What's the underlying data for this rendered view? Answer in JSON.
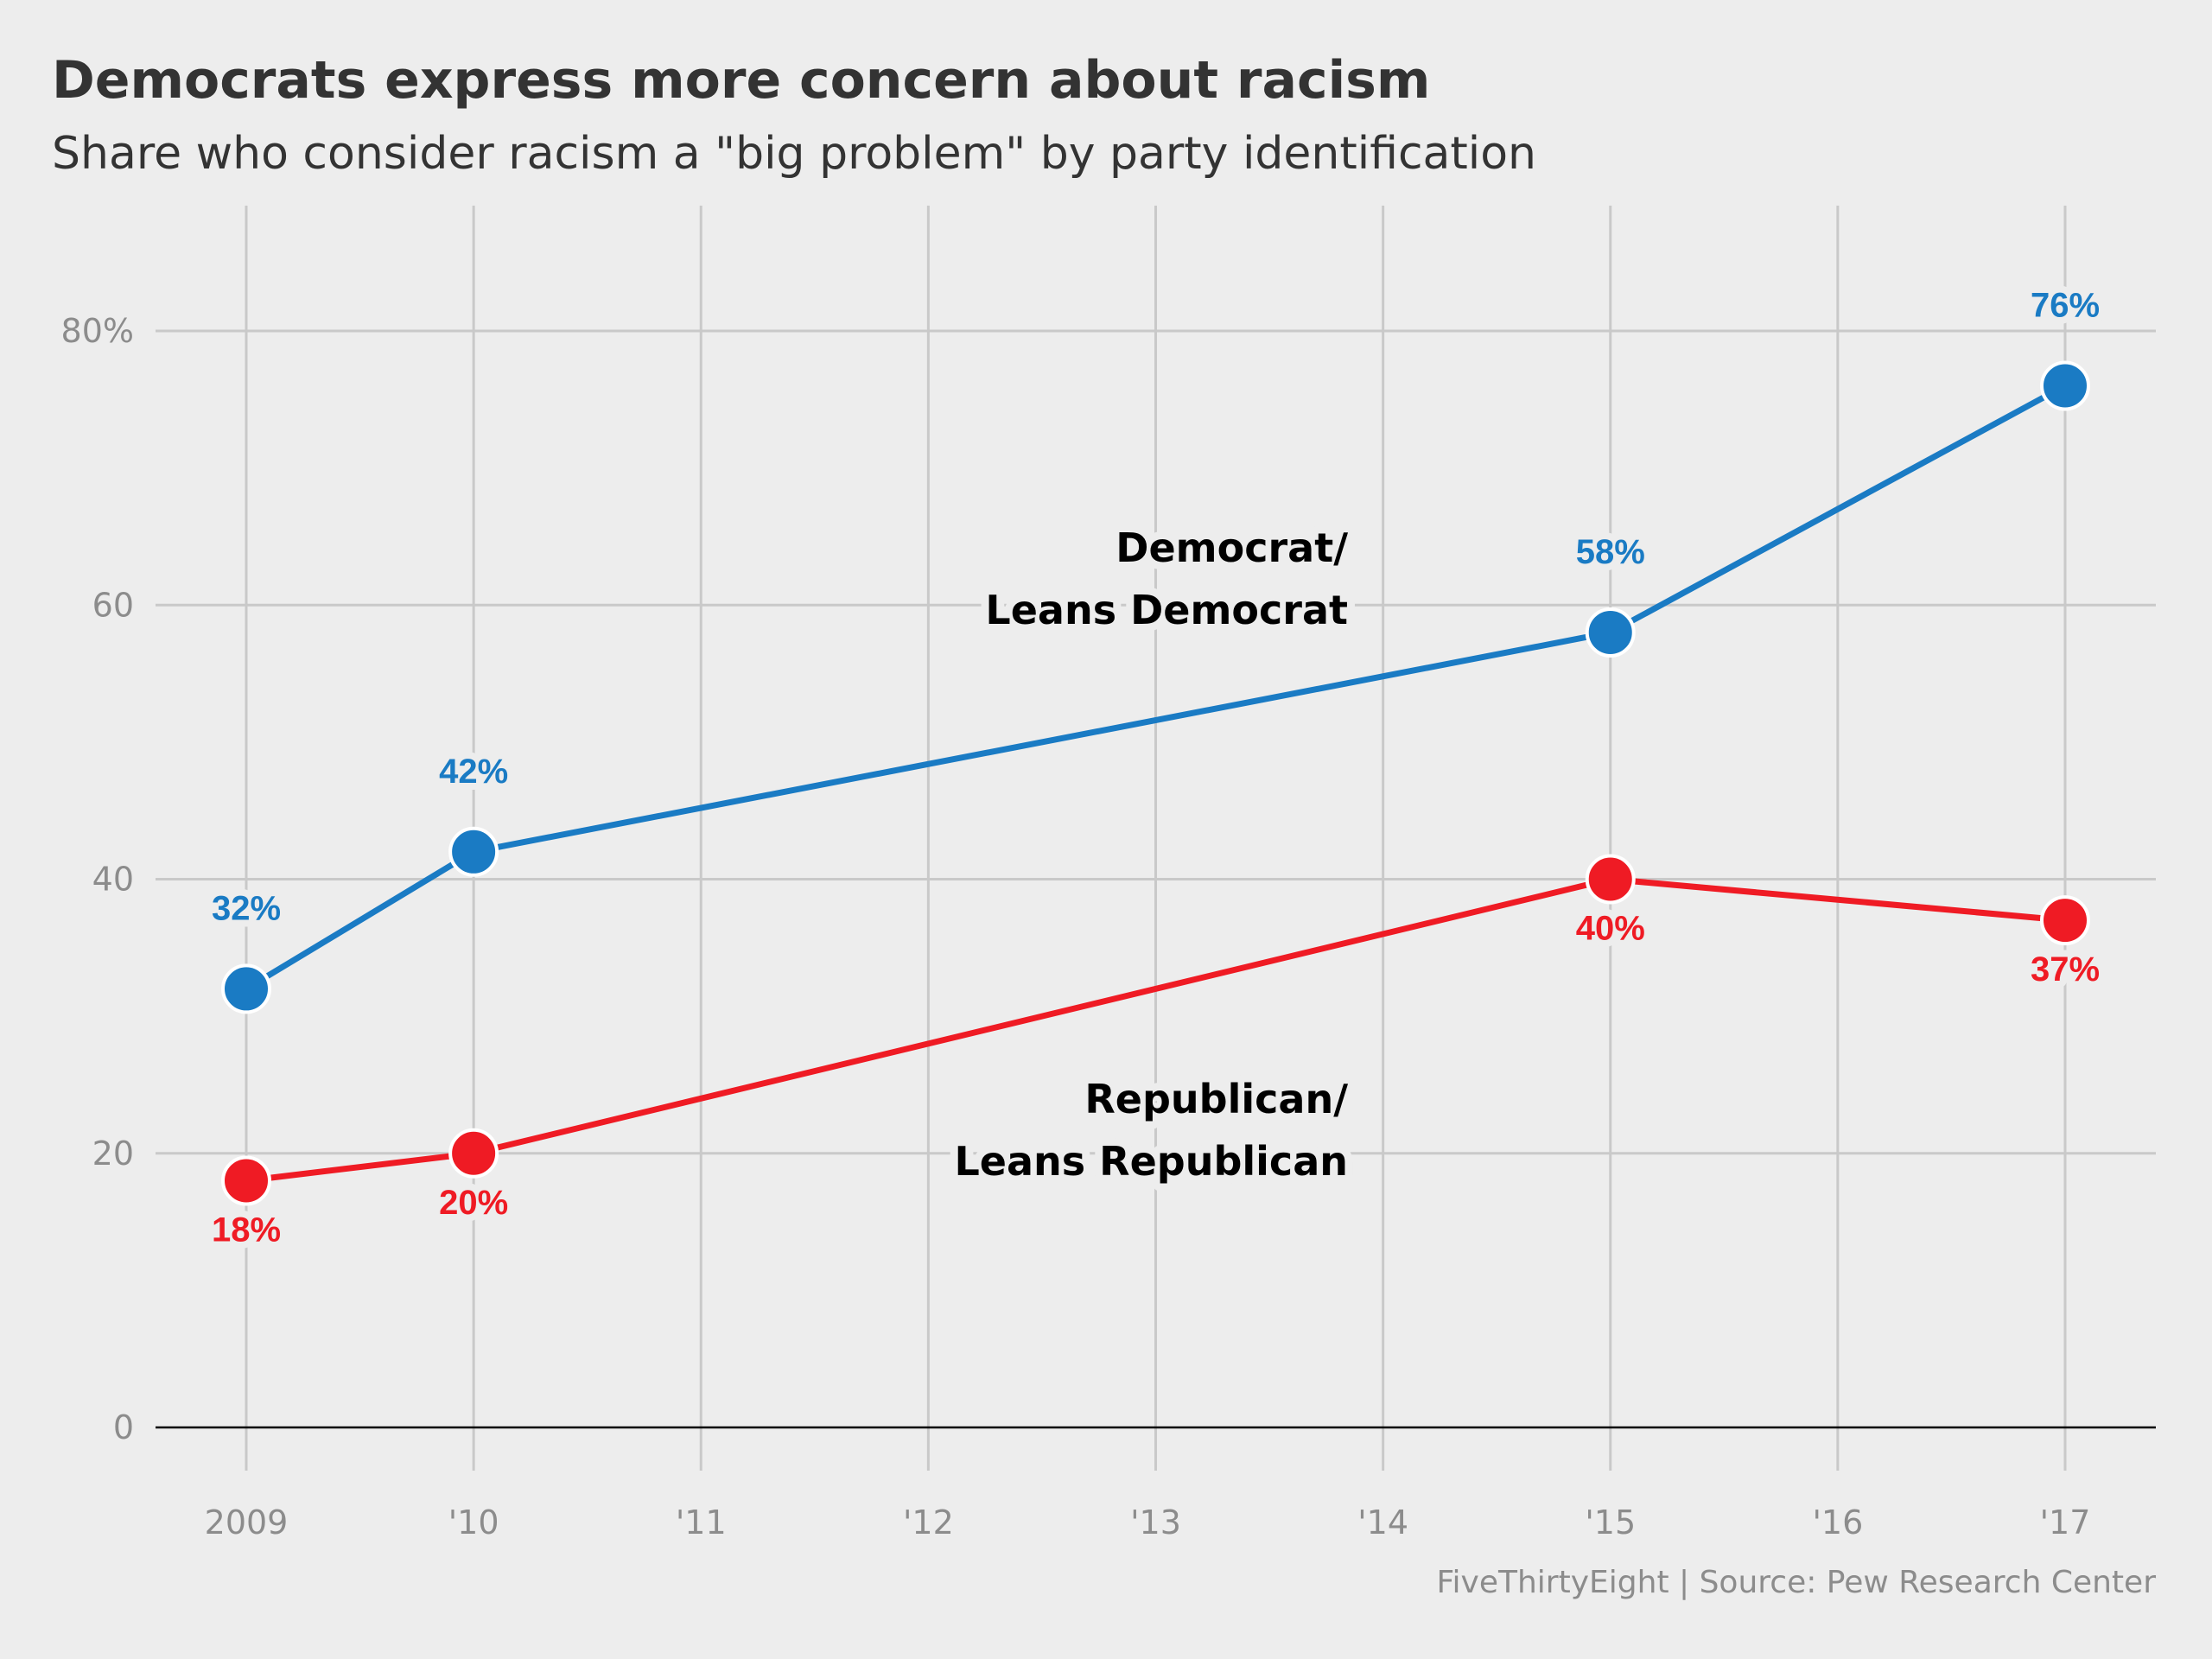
{
  "chart_data": {
    "type": "line",
    "title": "Democrats express more concern about racism",
    "subtitle": "Share who consider racism a \"big problem\" by party identification",
    "x_ticks": [
      "2009",
      "'10",
      "'11",
      "'12",
      "'13",
      "'14",
      "'15",
      "'16",
      "'17"
    ],
    "x_tick_values": [
      2009,
      2010,
      2011,
      2012,
      2013,
      2014,
      2015,
      2016,
      2017
    ],
    "y_ticks": [
      "0",
      "20",
      "40",
      "60",
      "80%"
    ],
    "y_tick_values": [
      0,
      20,
      40,
      60,
      80
    ],
    "xlim": [
      2008.6,
      2017.4
    ],
    "ylim": [
      -3,
      90
    ],
    "grid": true,
    "series": [
      {
        "name": "Democrat/\nLeans Democrat",
        "name_lines": [
          "Democrat/",
          "Leans Democrat"
        ],
        "color": "#1a7bc4",
        "x": [
          2009,
          2010,
          2015,
          2017
        ],
        "y": [
          32,
          42,
          58,
          76
        ],
        "labels": [
          "32%",
          "42%",
          "58%",
          "76%"
        ],
        "label_position": "above"
      },
      {
        "name": "Republican/\nLeans Republican",
        "name_lines": [
          "Republican/",
          "Leans Republican"
        ],
        "color": "#ef1b24",
        "x": [
          2009,
          2010,
          2015,
          2017
        ],
        "y": [
          18,
          20,
          40,
          37
        ],
        "labels": [
          "18%",
          "20%",
          "40%",
          "37%"
        ],
        "label_position": "below"
      }
    ],
    "source": "FiveThirtyEight | Source: Pew Research Center"
  }
}
